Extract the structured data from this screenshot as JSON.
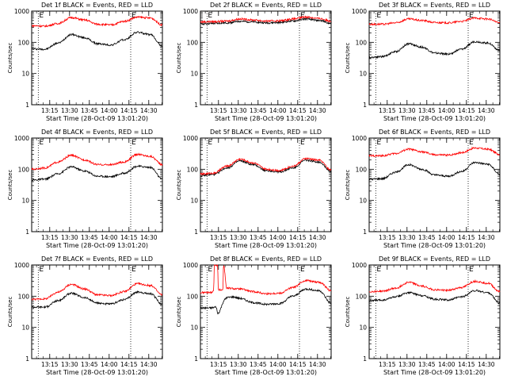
{
  "chart_data": [
    {
      "type": "line",
      "title": "Det 1f BLACK = Events, RED = LLD",
      "xlabel": "Start Time (28-Oct-09 13:01:20)",
      "ylabel": "Counts/sec",
      "x_ticks": [
        "13:15",
        "13:30",
        "13:45",
        "14:00",
        "14:15",
        "14:30"
      ],
      "y_ticks": [
        "1",
        "10",
        "100",
        "1000"
      ],
      "yscale": "log",
      "ylim": [
        1,
        1000
      ],
      "xlim_minutes": [
        0,
        99
      ],
      "dotted_lines_minutes": [
        5,
        75
      ],
      "marker_labels": [
        "E",
        "E"
      ],
      "series": [
        {
          "color": "#000000",
          "x_minutes": [
            0,
            10,
            20,
            30,
            40,
            50,
            60,
            70,
            80,
            90,
            99
          ],
          "values": [
            62,
            60,
            95,
            178,
            140,
            90,
            82,
            120,
            210,
            175,
            75
          ]
        },
        {
          "color": "#ff0000",
          "x_minutes": [
            0,
            10,
            20,
            30,
            40,
            50,
            60,
            70,
            80,
            90,
            99
          ],
          "values": [
            340,
            330,
            400,
            620,
            520,
            380,
            360,
            470,
            640,
            600,
            360
          ]
        }
      ]
    },
    {
      "type": "line",
      "title": "Det 2f BLACK = Events, RED = LLD",
      "xlabel": "Start Time (28-Oct-09 13:01:20)",
      "ylabel": "Counts/sec",
      "x_ticks": [
        "13:15",
        "13:30",
        "13:45",
        "14:00",
        "14:15",
        "14:30"
      ],
      "y_ticks": [
        "1",
        "10",
        "100",
        "1000"
      ],
      "yscale": "log",
      "ylim": [
        1,
        1000
      ],
      "xlim_minutes": [
        0,
        99
      ],
      "dotted_lines_minutes": [
        5,
        75
      ],
      "marker_labels": [
        "E",
        "E"
      ],
      "series": [
        {
          "color": "#000000",
          "x_minutes": [
            0,
            10,
            20,
            30,
            40,
            50,
            60,
            70,
            80,
            90,
            99
          ],
          "values": [
            390,
            400,
            420,
            470,
            450,
            420,
            430,
            480,
            560,
            500,
            410
          ]
        },
        {
          "color": "#ff0000",
          "x_minutes": [
            0,
            10,
            20,
            30,
            40,
            50,
            60,
            70,
            80,
            90,
            99
          ],
          "values": [
            450,
            460,
            480,
            560,
            520,
            480,
            490,
            560,
            650,
            580,
            480
          ]
        }
      ]
    },
    {
      "type": "line",
      "title": "Det 3f BLACK = Events, RED = LLD",
      "xlabel": "Start Time (28-Oct-09 13:01:20)",
      "ylabel": "Counts/sec",
      "x_ticks": [
        "13:15",
        "13:30",
        "13:45",
        "14:00",
        "14:15",
        "14:30"
      ],
      "y_ticks": [
        "1",
        "10",
        "100",
        "1000"
      ],
      "yscale": "log",
      "ylim": [
        1,
        1000
      ],
      "xlim_minutes": [
        0,
        99
      ],
      "dotted_lines_minutes": [
        5,
        75
      ],
      "marker_labels": [
        "E",
        "E"
      ],
      "series": [
        {
          "color": "#000000",
          "x_minutes": [
            0,
            10,
            20,
            30,
            40,
            50,
            60,
            70,
            80,
            90,
            99
          ],
          "values": [
            33,
            35,
            50,
            90,
            70,
            45,
            42,
            60,
            105,
            95,
            55
          ]
        },
        {
          "color": "#ff0000",
          "x_minutes": [
            0,
            10,
            20,
            30,
            40,
            50,
            60,
            70,
            80,
            90,
            99
          ],
          "values": [
            380,
            380,
            420,
            560,
            500,
            430,
            420,
            470,
            600,
            560,
            420
          ]
        }
      ]
    },
    {
      "type": "line",
      "title": "Det 4f BLACK = Events, RED = LLD",
      "xlabel": "Start Time (28-Oct-09 13:01:20)",
      "ylabel": "Counts/sec",
      "x_ticks": [
        "13:15",
        "13:30",
        "13:45",
        "14:00",
        "14:15",
        "14:30"
      ],
      "y_ticks": [
        "1",
        "10",
        "100",
        "1000"
      ],
      "yscale": "log",
      "ylim": [
        1,
        1000
      ],
      "xlim_minutes": [
        0,
        99
      ],
      "dotted_lines_minutes": [
        5,
        75
      ],
      "marker_labels": [
        "E",
        "E"
      ],
      "series": [
        {
          "color": "#000000",
          "x_minutes": [
            0,
            10,
            20,
            30,
            40,
            50,
            60,
            70,
            80,
            90,
            99
          ],
          "values": [
            45,
            48,
            72,
            120,
            88,
            60,
            58,
            75,
            125,
            115,
            48
          ]
        },
        {
          "color": "#ff0000",
          "x_minutes": [
            0,
            10,
            20,
            30,
            40,
            50,
            60,
            70,
            80,
            90,
            99
          ],
          "values": [
            100,
            110,
            170,
            280,
            200,
            140,
            140,
            170,
            300,
            260,
            140
          ]
        }
      ]
    },
    {
      "type": "line",
      "title": "Det 5f BLACK = Events, RED = LLD",
      "xlabel": "Start Time (28-Oct-09 13:01:20)",
      "ylabel": "Counts/sec",
      "x_ticks": [
        "13:15",
        "13:30",
        "13:45",
        "14:00",
        "14:15",
        "14:30"
      ],
      "y_ticks": [
        "1",
        "10",
        "100",
        "1000"
      ],
      "yscale": "log",
      "ylim": [
        1,
        1000
      ],
      "xlim_minutes": [
        0,
        99
      ],
      "dotted_lines_minutes": [
        5,
        75
      ],
      "marker_labels": [
        "E",
        "E"
      ],
      "series": [
        {
          "color": "#000000",
          "x_minutes": [
            0,
            10,
            20,
            30,
            40,
            50,
            60,
            70,
            80,
            90,
            99
          ],
          "values": [
            62,
            68,
            110,
            185,
            140,
            90,
            82,
            110,
            195,
            170,
            85
          ]
        },
        {
          "color": "#ff0000",
          "x_minutes": [
            0,
            10,
            20,
            30,
            40,
            50,
            60,
            70,
            80,
            90,
            99
          ],
          "values": [
            70,
            75,
            125,
            210,
            160,
            100,
            92,
            125,
            220,
            195,
            95
          ]
        }
      ]
    },
    {
      "type": "line",
      "title": "Det 6f BLACK = Events, RED = LLD",
      "xlabel": "Start Time (28-Oct-09 13:01:20)",
      "ylabel": "Counts/sec",
      "x_ticks": [
        "13:15",
        "13:30",
        "13:45",
        "14:00",
        "14:15",
        "14:30"
      ],
      "y_ticks": [
        "1",
        "10",
        "100",
        "1000"
      ],
      "yscale": "log",
      "ylim": [
        1,
        1000
      ],
      "xlim_minutes": [
        0,
        99
      ],
      "dotted_lines_minutes": [
        5,
        75
      ],
      "marker_labels": [
        "E",
        "E"
      ],
      "series": [
        {
          "color": "#000000",
          "x_minutes": [
            0,
            10,
            20,
            30,
            40,
            50,
            60,
            70,
            80,
            90,
            99
          ],
          "values": [
            48,
            50,
            80,
            140,
            100,
            65,
            60,
            85,
            165,
            145,
            70
          ]
        },
        {
          "color": "#ff0000",
          "x_minutes": [
            0,
            10,
            20,
            30,
            40,
            50,
            60,
            70,
            80,
            90,
            99
          ],
          "values": [
            270,
            270,
            320,
            440,
            360,
            290,
            285,
            340,
            480,
            440,
            300
          ]
        }
      ]
    },
    {
      "type": "line",
      "title": "Det 7f BLACK = Events, RED = LLD",
      "xlabel": "Start Time (28-Oct-09 13:01:20)",
      "ylabel": "Counts/sec",
      "x_ticks": [
        "13:15",
        "13:30",
        "13:45",
        "14:00",
        "14:15",
        "14:30"
      ],
      "y_ticks": [
        "1",
        "10",
        "100",
        "1000"
      ],
      "yscale": "log",
      "ylim": [
        1,
        1000
      ],
      "xlim_minutes": [
        0,
        99
      ],
      "dotted_lines_minutes": [
        5,
        75
      ],
      "marker_labels": [
        "E",
        "E"
      ],
      "series": [
        {
          "color": "#000000",
          "x_minutes": [
            0,
            10,
            20,
            30,
            40,
            50,
            60,
            70,
            80,
            90,
            99
          ],
          "values": [
            45,
            45,
            72,
            125,
            90,
            60,
            56,
            78,
            135,
            120,
            55
          ]
        },
        {
          "color": "#ff0000",
          "x_minutes": [
            0,
            10,
            20,
            30,
            40,
            50,
            60,
            70,
            80,
            90,
            99
          ],
          "values": [
            80,
            82,
            135,
            240,
            170,
            110,
            105,
            140,
            250,
            220,
            110
          ]
        }
      ]
    },
    {
      "type": "line",
      "title": "Det 8f BLACK = Events, RED = LLD",
      "xlabel": "Start Time (28-Oct-09 13:01:20)",
      "ylabel": "Counts/sec",
      "x_ticks": [
        "13:15",
        "13:30",
        "13:45",
        "14:00",
        "14:15",
        "14:30"
      ],
      "y_ticks": [
        "1",
        "10",
        "100",
        "1000"
      ],
      "yscale": "log",
      "ylim": [
        1,
        1000
      ],
      "xlim_minutes": [
        0,
        99
      ],
      "dotted_lines_minutes": [
        5,
        75
      ],
      "marker_labels": [
        "E",
        "E"
      ],
      "series": [
        {
          "color": "#000000",
          "x_minutes": [
            0,
            8,
            12,
            13,
            19,
            19.5,
            25,
            30,
            40,
            50,
            60,
            70,
            80,
            90,
            99
          ],
          "values": [
            42,
            42,
            45,
            28,
            80,
            90,
            95,
            85,
            62,
            55,
            58,
            100,
            170,
            150,
            60
          ]
        },
        {
          "color": "#ff0000",
          "x_minutes": [
            0,
            8,
            10,
            10.5,
            13,
            13.5,
            17,
            17.5,
            20,
            30,
            40,
            50,
            60,
            70,
            80,
            90,
            99
          ],
          "values": [
            130,
            132,
            150,
            1000,
            1000,
            160,
            160,
            1000,
            180,
            170,
            140,
            120,
            125,
            190,
            320,
            280,
            150
          ]
        }
      ]
    },
    {
      "type": "line",
      "title": "Det 9f BLACK = Events, RED = LLD",
      "xlabel": "Start Time (28-Oct-09 13:01:20)",
      "ylabel": "Counts/sec",
      "x_ticks": [
        "13:15",
        "13:30",
        "13:45",
        "14:00",
        "14:15",
        "14:30"
      ],
      "y_ticks": [
        "1",
        "10",
        "100",
        "1000"
      ],
      "yscale": "log",
      "ylim": [
        1,
        1000
      ],
      "xlim_minutes": [
        0,
        99
      ],
      "dotted_lines_minutes": [
        5,
        75
      ],
      "marker_labels": [
        "E",
        "E"
      ],
      "series": [
        {
          "color": "#000000",
          "x_minutes": [
            0,
            10,
            20,
            30,
            40,
            50,
            60,
            70,
            80,
            90,
            99
          ],
          "values": [
            72,
            75,
            95,
            130,
            105,
            80,
            76,
            95,
            150,
            130,
            60
          ]
        },
        {
          "color": "#ff0000",
          "x_minutes": [
            0,
            10,
            20,
            30,
            40,
            50,
            60,
            70,
            80,
            90,
            99
          ],
          "values": [
            140,
            145,
            180,
            280,
            210,
            160,
            155,
            190,
            300,
            260,
            140
          ]
        }
      ]
    }
  ]
}
